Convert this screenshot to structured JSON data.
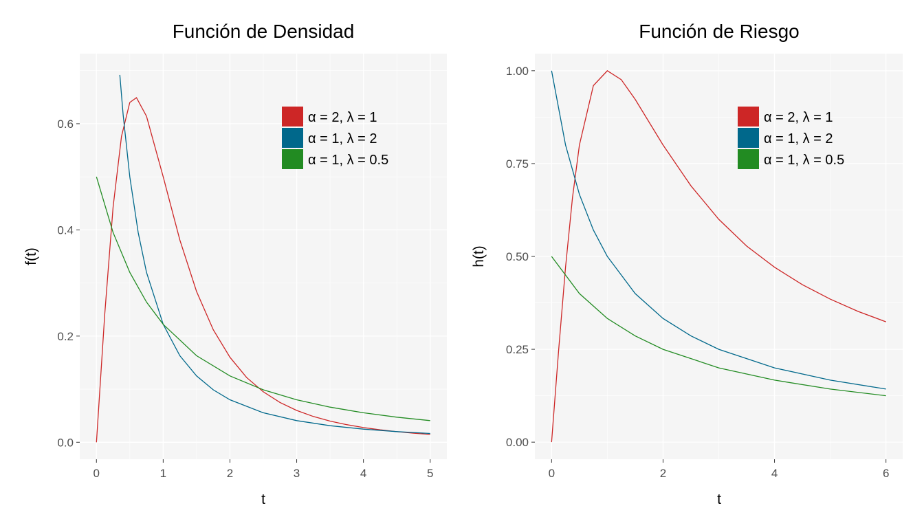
{
  "colors": {
    "red": "#CD2626",
    "blue": "#00688B",
    "green": "#228B22",
    "panel": "#F5F5F5",
    "grid": "#FFFFFF"
  },
  "chart_data": [
    {
      "type": "line",
      "title": "Función de Densidad",
      "xlabel": "t",
      "ylabel": "f(t)",
      "xlim": [
        -0.25,
        5.25
      ],
      "ylim": [
        -0.032,
        0.732
      ],
      "xticks": [
        0,
        1,
        2,
        3,
        4,
        5
      ],
      "xtick_labels": [
        "0",
        "1",
        "2",
        "3",
        "4",
        "5"
      ],
      "yticks": [
        0,
        0.2,
        0.4,
        0.6
      ],
      "ytick_labels": [
        "0.0",
        "0.2",
        "0.4",
        "0.6"
      ],
      "grid": true,
      "legend_position": "top-right",
      "series": [
        {
          "name": "α = 2, λ = 1",
          "color": "red",
          "x": [
            0,
            0.125,
            0.25,
            0.375,
            0.5,
            0.6,
            0.75,
            1,
            1.25,
            1.5,
            1.75,
            2,
            2.25,
            2.5,
            2.75,
            3,
            3.25,
            3.5,
            3.75,
            4,
            4.25,
            4.5,
            4.75,
            5
          ],
          "y": [
            0,
            0.242,
            0.443,
            0.576,
            0.64,
            0.649,
            0.614,
            0.5,
            0.381,
            0.284,
            0.212,
            0.16,
            0.122,
            0.095,
            0.075,
            0.06,
            0.0486,
            0.0399,
            0.0331,
            0.0277,
            0.0234,
            0.0199,
            0.0171,
            0.0148
          ]
        },
        {
          "name": "α = 1, λ = 2",
          "color": "blue",
          "x": [
            0.35,
            0.4,
            0.5,
            0.625,
            0.75,
            1,
            1.25,
            1.5,
            1.75,
            2,
            2.5,
            3,
            3.5,
            4,
            4.5,
            5
          ],
          "y": [
            0.692,
            0.617,
            0.5,
            0.395,
            0.32,
            0.222,
            0.163,
            0.125,
            0.0988,
            0.08,
            0.0556,
            0.0408,
            0.03125,
            0.0247,
            0.02,
            0.0165
          ]
        },
        {
          "name": "α = 1, λ = 0.5",
          "color": "green",
          "x": [
            0,
            0.25,
            0.5,
            0.75,
            1,
            1.5,
            2,
            2.5,
            3,
            3.5,
            4,
            4.5,
            5
          ],
          "y": [
            0.5,
            0.395,
            0.32,
            0.264,
            0.222,
            0.163,
            0.125,
            0.0988,
            0.08,
            0.0661,
            0.0556,
            0.0473,
            0.0408
          ]
        }
      ]
    },
    {
      "type": "line",
      "title": "Función de Riesgo",
      "xlabel": "t",
      "ylabel": "h(t)",
      "xlim": [
        -0.3,
        6.3
      ],
      "ylim": [
        -0.046,
        1.046
      ],
      "xticks": [
        0,
        2,
        4,
        6
      ],
      "xtick_labels": [
        "0",
        "2",
        "4",
        "6"
      ],
      "yticks": [
        0,
        0.25,
        0.5,
        0.75,
        1
      ],
      "ytick_labels": [
        "0.00",
        "0.25",
        "0.50",
        "0.75",
        "1.00"
      ],
      "grid": true,
      "legend_position": "top-right",
      "series": [
        {
          "name": "α = 2, λ = 1",
          "color": "red",
          "x": [
            0,
            0.125,
            0.25,
            0.375,
            0.5,
            0.75,
            1,
            1.25,
            1.5,
            2,
            2.5,
            3,
            3.5,
            4,
            4.5,
            5,
            5.5,
            6
          ],
          "y": [
            0,
            0.246,
            0.471,
            0.658,
            0.8,
            0.96,
            1,
            0.976,
            0.923,
            0.8,
            0.69,
            0.6,
            0.528,
            0.471,
            0.424,
            0.385,
            0.352,
            0.324
          ]
        },
        {
          "name": "α = 1, λ = 2",
          "color": "blue",
          "x": [
            0,
            0.25,
            0.5,
            0.75,
            1,
            1.5,
            2,
            2.5,
            3,
            4,
            5,
            6
          ],
          "y": [
            1,
            0.8,
            0.667,
            0.571,
            0.5,
            0.4,
            0.333,
            0.286,
            0.25,
            0.2,
            0.167,
            0.143
          ]
        },
        {
          "name": "α = 1, λ = 0.5",
          "color": "green",
          "x": [
            0,
            0.5,
            1,
            1.5,
            2,
            3,
            4,
            5,
            6
          ],
          "y": [
            0.5,
            0.4,
            0.333,
            0.286,
            0.25,
            0.2,
            0.167,
            0.143,
            0.125
          ]
        }
      ]
    }
  ]
}
